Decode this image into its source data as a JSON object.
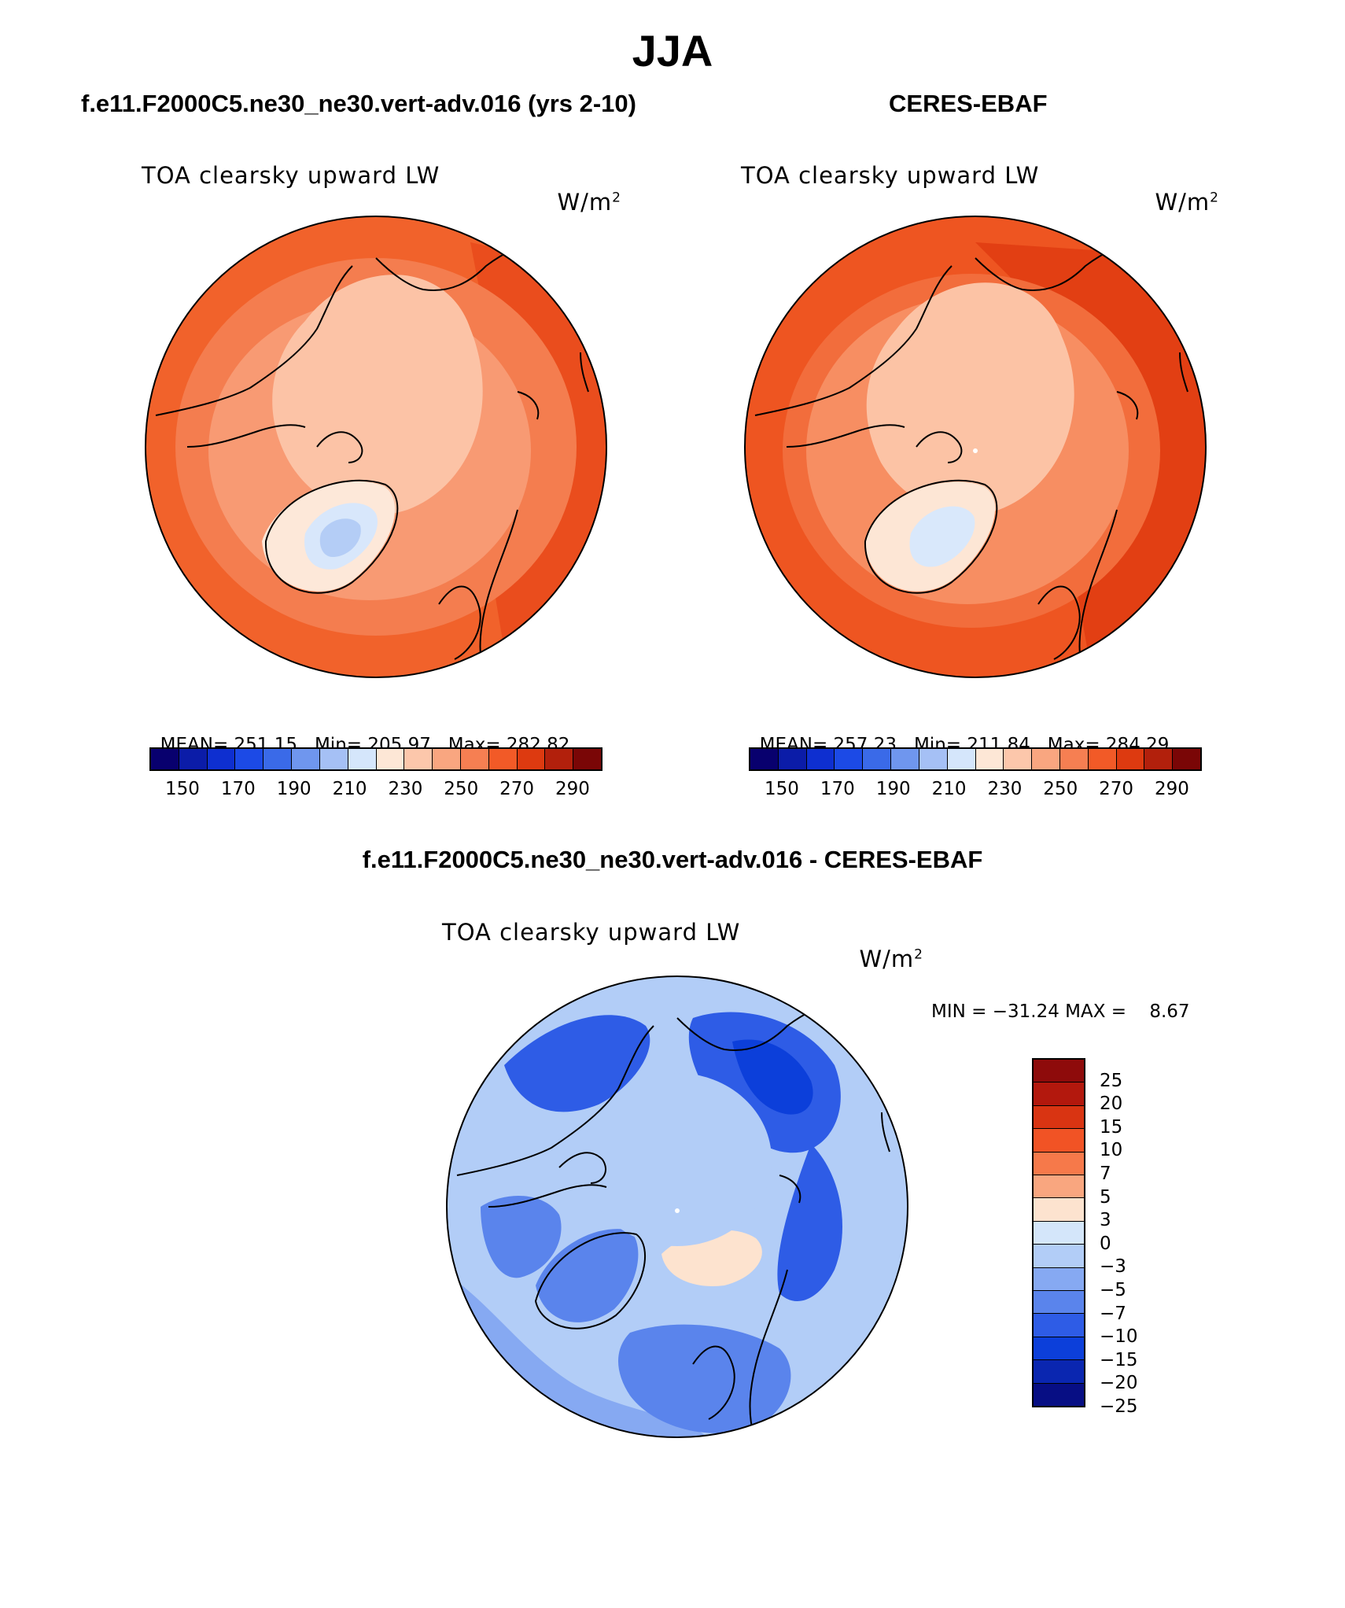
{
  "page": {
    "season": "JJA"
  },
  "panels": [
    {
      "id": "model",
      "heading": "f.e11.F2000C5.ne30_ne30.vert-adv.016 (yrs 2-10)",
      "variable": "TOA clearsky upward LW",
      "units": "W/m",
      "units_sup": "2",
      "stats": {
        "mean_label": "MEAN=",
        "mean": "251.15",
        "min_label": "Min=",
        "min": "205.97",
        "max_label": "Max=",
        "max": "282.82"
      }
    },
    {
      "id": "obs",
      "heading": "CERES-EBAF",
      "variable": "TOA clearsky upward LW",
      "units": "W/m",
      "units_sup": "2",
      "stats": {
        "mean_label": "MEAN=",
        "mean": "257.23",
        "min_label": "Min=",
        "min": "211.84",
        "max_label": "Max=",
        "max": "284.29"
      }
    }
  ],
  "abs_colorbar": {
    "colors": [
      "#08006e",
      "#0b1ca8",
      "#0e2fd0",
      "#1c4ae6",
      "#3a6ae8",
      "#6f96ee",
      "#a5c0f5",
      "#d5e6fb",
      "#fde7d6",
      "#fcc7ab",
      "#f9a680",
      "#f67f52",
      "#f25a27",
      "#dd3a10",
      "#b2200c",
      "#7a0606"
    ],
    "tick_labels": [
      "150",
      "170",
      "190",
      "210",
      "230",
      "250",
      "270",
      "290"
    ]
  },
  "diff": {
    "heading": "f.e11.F2000C5.ne30_ne30.vert-adv.016 - CERES-EBAF",
    "variable": "TOA clearsky upward LW",
    "units": "W/m",
    "units_sup": "2",
    "minmax": "MIN = −31.24 MAX =    8.67",
    "colorbar": {
      "colors_top_to_bottom": [
        "#8e0b0b",
        "#b3180d",
        "#d93412",
        "#f15325",
        "#f6794a",
        "#f9a67f",
        "#fde3cf",
        "#d4e6fa",
        "#b2cdf7",
        "#86a9f2",
        "#5a84ec",
        "#2e5ce6",
        "#0c3fda",
        "#0a26b0",
        "#070e84"
      ],
      "labels": [
        "25",
        "20",
        "15",
        "10",
        "7",
        "5",
        "3",
        "0",
        "−3",
        "−5",
        "−7",
        "−10",
        "−15",
        "−20",
        "−25"
      ]
    }
  }
}
